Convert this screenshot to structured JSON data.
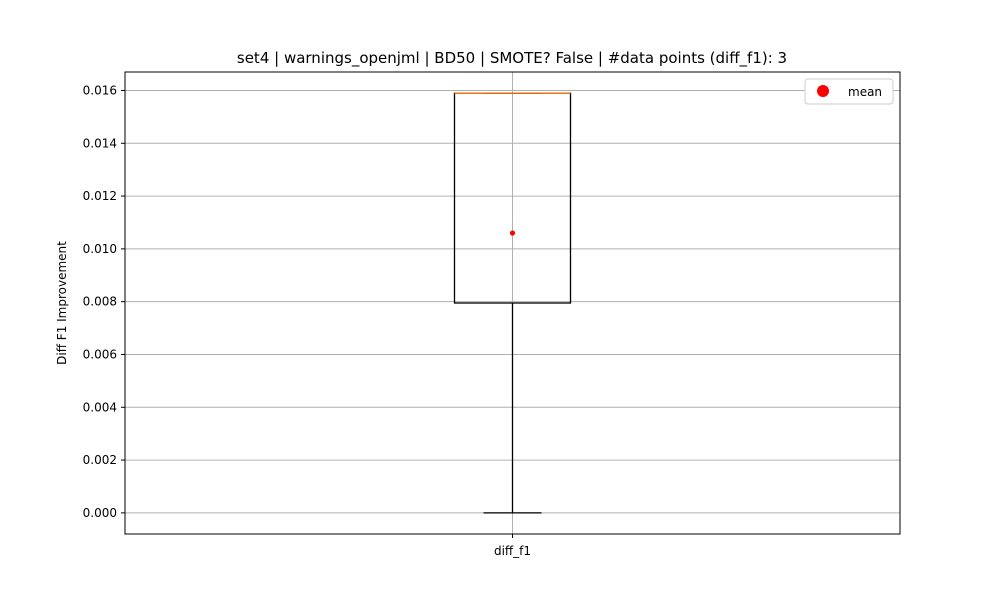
{
  "chart_data": {
    "type": "boxplot",
    "title": "set4 | warnings_openjml | BD50 | SMOTE? False | #data points (diff_f1): 3",
    "xlabel": "",
    "ylabel": "Diff F1 Improvement",
    "categories": [
      "diff_f1"
    ],
    "boxes": [
      {
        "name": "diff_f1",
        "whisker_low": 0.0,
        "q1": 0.00795,
        "median": 0.0159,
        "q3": 0.0159,
        "whisker_high": 0.0159,
        "mean": 0.0106
      }
    ],
    "ylim": [
      -0.0008,
      0.0167
    ],
    "yticks": [
      {
        "value": 0.0,
        "label": "0.000"
      },
      {
        "value": 0.002,
        "label": "0.002"
      },
      {
        "value": 0.004,
        "label": "0.004"
      },
      {
        "value": 0.006,
        "label": "0.006"
      },
      {
        "value": 0.008,
        "label": "0.008"
      },
      {
        "value": 0.01,
        "label": "0.010"
      },
      {
        "value": 0.012,
        "label": "0.012"
      },
      {
        "value": 0.014,
        "label": "0.014"
      },
      {
        "value": 0.016,
        "label": "0.016"
      }
    ],
    "grid": true,
    "legend": {
      "placement": "top-right",
      "entries": [
        {
          "label": "mean",
          "marker": "circle",
          "color": "#ff0000"
        }
      ]
    },
    "colors": {
      "box": "#000000",
      "median": "#ff7f0e",
      "mean": "#ff0000",
      "grid": "#b0b0b0"
    }
  }
}
